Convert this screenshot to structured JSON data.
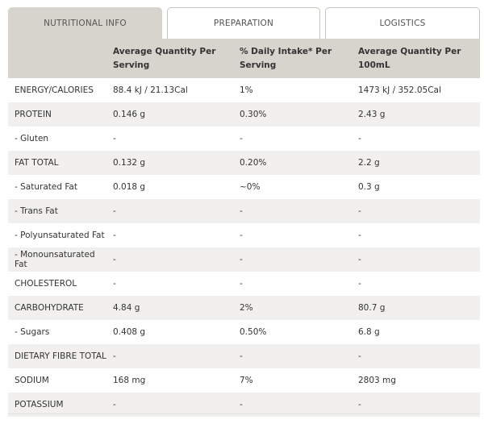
{
  "tabs": [
    {
      "label": "NUTRITIONAL INFO",
      "active": true
    },
    {
      "label": "PREPARATION",
      "active": false
    },
    {
      "label": "LOGISTICS",
      "active": false
    }
  ],
  "table": {
    "headers": [
      "",
      "Average Quantity Per Serving",
      "% Daily Intake* Per Serving",
      "Average Quantity Per 100mL"
    ],
    "rows": [
      [
        "ENERGY/CALORIES",
        "88.4 kJ / 21.13Cal",
        "1%",
        "1473 kJ / 352.05Cal"
      ],
      [
        "PROTEIN",
        "0.146 g",
        "0.30%",
        "2.43 g"
      ],
      [
        "- Gluten",
        "-",
        "-",
        "-"
      ],
      [
        "FAT TOTAL",
        "0.132 g",
        "0.20%",
        "2.2 g"
      ],
      [
        "- Saturated Fat",
        "0.018 g",
        "~0%",
        "0.3 g"
      ],
      [
        "- Trans Fat",
        "-",
        "-",
        "-"
      ],
      [
        "- Polyunsaturated Fat",
        "-",
        "-",
        "-"
      ],
      [
        "- Monounsaturated Fat",
        "-",
        "-",
        "-"
      ],
      [
        "CHOLESTEROL",
        "-",
        "-",
        "-"
      ],
      [
        "CARBOHYDRATE",
        "4.84 g",
        "2%",
        "80.7 g"
      ],
      [
        "- Sugars",
        "0.408 g",
        "0.50%",
        "6.8 g"
      ],
      [
        "DIETARY FIBRE TOTAL",
        "-",
        "-",
        "-"
      ],
      [
        "SODIUM",
        "168 mg",
        "7%",
        "2803 mg"
      ],
      [
        "POTASSIUM",
        "-",
        "-",
        "-"
      ]
    ]
  },
  "colors": {
    "active_tab": "#d7d4ce",
    "header_bg": "#d7d4ce",
    "stripe_bg": "#f1f0ee",
    "tab_border": "#c9c5bd"
  }
}
